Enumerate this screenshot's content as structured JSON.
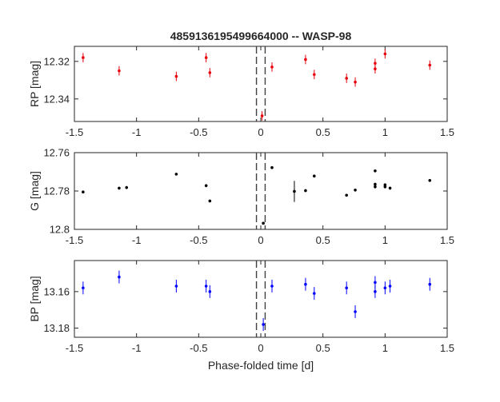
{
  "chart_data": [
    {
      "type": "scatter",
      "title": "4859136195499664000 -- WASP-98",
      "ylabel": "RP [mag]",
      "xlabel": "",
      "xlim": [
        -1.5,
        1.5
      ],
      "ylim": [
        12.312,
        12.352
      ],
      "y_reversed": true,
      "xticks": [
        "-1.5",
        "-1",
        "-0.5",
        "0",
        "0.5",
        "1",
        "1.5"
      ],
      "yticks": [
        "12.32",
        "12.34"
      ],
      "ytick_values": [
        12.32,
        12.34
      ],
      "color": "#e8000b",
      "vlines": [
        -0.035,
        0.035
      ],
      "grid": false,
      "points": [
        {
          "x": -1.43,
          "y": 12.318,
          "err": 0.0025
        },
        {
          "x": -1.14,
          "y": 12.325,
          "err": 0.0025
        },
        {
          "x": -0.68,
          "y": 12.328,
          "err": 0.0025
        },
        {
          "x": -0.44,
          "y": 12.318,
          "err": 0.0025
        },
        {
          "x": -0.41,
          "y": 12.326,
          "err": 0.0025
        },
        {
          "x": 0.01,
          "y": 12.349,
          "err": 0.0025
        },
        {
          "x": 0.09,
          "y": 12.323,
          "err": 0.0025
        },
        {
          "x": 0.36,
          "y": 12.319,
          "err": 0.0025
        },
        {
          "x": 0.43,
          "y": 12.327,
          "err": 0.0025
        },
        {
          "x": 0.69,
          "y": 12.329,
          "err": 0.0025
        },
        {
          "x": 0.76,
          "y": 12.331,
          "err": 0.0025
        },
        {
          "x": 0.92,
          "y": 12.324,
          "err": 0.0025
        },
        {
          "x": 0.92,
          "y": 12.321,
          "err": 0.0025
        },
        {
          "x": 1.0,
          "y": 12.316,
          "err": 0.0025
        },
        {
          "x": 1.36,
          "y": 12.322,
          "err": 0.0025
        }
      ]
    },
    {
      "type": "scatter",
      "title": "",
      "ylabel": "G [mag]",
      "xlabel": "",
      "xlim": [
        -1.5,
        1.5
      ],
      "ylim": [
        12.76,
        12.8
      ],
      "y_reversed": true,
      "xticks": [
        "-1.5",
        "-1",
        "-0.5",
        "0",
        "0.5",
        "1",
        "1.5"
      ],
      "yticks": [
        "12.76",
        "12.78",
        "12.8"
      ],
      "ytick_values": [
        12.76,
        12.78,
        12.8
      ],
      "color": "#000000",
      "vlines": [
        -0.035,
        0.035
      ],
      "grid": false,
      "points": [
        {
          "x": -1.43,
          "y": 12.7805,
          "err": 0.0005
        },
        {
          "x": -1.14,
          "y": 12.7785,
          "err": 0.0005
        },
        {
          "x": -1.08,
          "y": 12.7782,
          "err": 0.0008
        },
        {
          "x": -0.68,
          "y": 12.7712,
          "err": 0.0005
        },
        {
          "x": -0.44,
          "y": 12.7772,
          "err": 0.0008
        },
        {
          "x": -0.41,
          "y": 12.7852,
          "err": 0.0005
        },
        {
          "x": 0.02,
          "y": 12.7968,
          "err": 0.0005
        },
        {
          "x": 0.09,
          "y": 12.7678,
          "err": 0.0005
        },
        {
          "x": 0.27,
          "y": 12.7802,
          "err": 0.0055
        },
        {
          "x": 0.36,
          "y": 12.7798,
          "err": 0.0008
        },
        {
          "x": 0.43,
          "y": 12.7722,
          "err": 0.0008
        },
        {
          "x": 0.69,
          "y": 12.7822,
          "err": 0.0005
        },
        {
          "x": 0.76,
          "y": 12.7795,
          "err": 0.0005
        },
        {
          "x": 0.92,
          "y": 12.7695,
          "err": 0.0005
        },
        {
          "x": 0.92,
          "y": 12.7778,
          "err": 0.0008
        },
        {
          "x": 0.92,
          "y": 12.7765,
          "err": 0.0008
        },
        {
          "x": 1.0,
          "y": 12.7768,
          "err": 0.0008
        },
        {
          "x": 1.0,
          "y": 12.7778,
          "err": 0.0008
        },
        {
          "x": 1.04,
          "y": 12.7785,
          "err": 0.0008
        },
        {
          "x": 1.36,
          "y": 12.7745,
          "err": 0.0005
        }
      ]
    },
    {
      "type": "scatter",
      "title": "",
      "ylabel": "BP [mag]",
      "xlabel": "Phase-folded time [d]",
      "xlim": [
        -1.5,
        1.5
      ],
      "ylim": [
        13.143,
        13.185
      ],
      "y_reversed": true,
      "xticks": [
        "-1.5",
        "-1",
        "-0.5",
        "0",
        "0.5",
        "1",
        "1.5"
      ],
      "yticks": [
        "13.16",
        "13.18"
      ],
      "ytick_values": [
        13.16,
        13.18
      ],
      "color": "#0000ff",
      "vlines": [
        -0.035,
        0.035
      ],
      "grid": false,
      "points": [
        {
          "x": -1.43,
          "y": 13.158,
          "err": 0.0035
        },
        {
          "x": -1.14,
          "y": 13.152,
          "err": 0.0035
        },
        {
          "x": -0.68,
          "y": 13.157,
          "err": 0.0035
        },
        {
          "x": -0.44,
          "y": 13.157,
          "err": 0.0035
        },
        {
          "x": -0.41,
          "y": 13.16,
          "err": 0.0035
        },
        {
          "x": 0.02,
          "y": 13.178,
          "err": 0.0035
        },
        {
          "x": 0.09,
          "y": 13.157,
          "err": 0.0035
        },
        {
          "x": 0.36,
          "y": 13.156,
          "err": 0.0035
        },
        {
          "x": 0.43,
          "y": 13.161,
          "err": 0.0035
        },
        {
          "x": 0.69,
          "y": 13.158,
          "err": 0.0035
        },
        {
          "x": 0.76,
          "y": 13.171,
          "err": 0.0035
        },
        {
          "x": 0.92,
          "y": 13.155,
          "err": 0.0035
        },
        {
          "x": 0.92,
          "y": 13.16,
          "err": 0.0035
        },
        {
          "x": 1.0,
          "y": 13.158,
          "err": 0.0035
        },
        {
          "x": 1.04,
          "y": 13.157,
          "err": 0.0035
        },
        {
          "x": 1.36,
          "y": 13.156,
          "err": 0.0035
        }
      ]
    }
  ]
}
